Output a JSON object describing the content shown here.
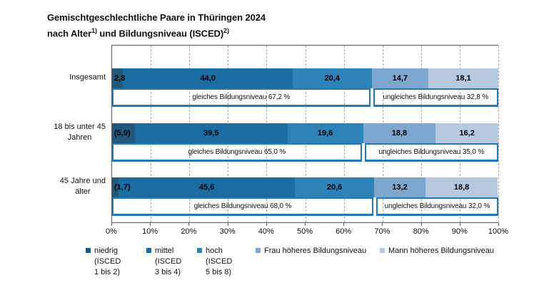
{
  "header": {
    "title_line1": "Gemischtgeschlechtliche Paare in Thüringen 2024",
    "title_line2_prefix": "nach Alter",
    "title_line2_sup1": "1)",
    "title_line2_mid": " und Bildungsniveau (ISCED)",
    "title_line2_sup2": "2)"
  },
  "palette": {
    "niedrig": "#20597c",
    "mittel": "#1b6ca3",
    "hoch": "#2d83b8",
    "frau_hoeher": "#7ea7cf",
    "mann_hoeher": "#b7c9df",
    "box_border": "#2279b5",
    "grid": "#a9a9a9",
    "axis": "#595959"
  },
  "chart_data": {
    "type": "bar",
    "orientation": "horizontal_stacked",
    "title": "Gemischtgeschlechtliche Paare in Thüringen 2024 nach Alter und Bildungsniveau (ISCED)",
    "grid": "dashed vertical at every 10%",
    "legend_position": "bottom",
    "xlim": [
      0,
      100
    ],
    "x_ticks": [
      "0%",
      "10%",
      "20%",
      "30%",
      "40%",
      "50%",
      "60%",
      "70%",
      "80%",
      "90%",
      "100%"
    ],
    "categories": [
      "Insgesamt",
      "18 bis unter 45 Jahren",
      "45 Jahre und älter"
    ],
    "category_display_lines": [
      [
        "Insgesamt"
      ],
      [
        "18 bis unter 45",
        "Jahren"
      ],
      [
        "45 Jahre und",
        "älter"
      ]
    ],
    "series": [
      {
        "name": "niedrig (ISCED 1 bis 2)",
        "color": "#20597c",
        "values": [
          2.8,
          5.9,
          1.7
        ],
        "display_labels": [
          "2,8",
          "(5,9)",
          "(1,7)"
        ]
      },
      {
        "name": "mittel (ISCED 3 bis 4)",
        "color": "#1b6ca3",
        "values": [
          44.0,
          39.5,
          45.6
        ],
        "display_labels": [
          "44,0",
          "39,5",
          "45,6"
        ]
      },
      {
        "name": "hoch (ISCED 5 bis 8)",
        "color": "#2d83b8",
        "values": [
          20.4,
          19.6,
          20.6
        ],
        "display_labels": [
          "20,4",
          "19,6",
          "20,6"
        ]
      },
      {
        "name": "Frau höheres Bildungsniveau",
        "color": "#7ea7cf",
        "values": [
          14.7,
          18.8,
          13.2
        ],
        "display_labels": [
          "14,7",
          "18,8",
          "13,2"
        ]
      },
      {
        "name": "Mann höheres Bildungsniveau",
        "color": "#b7c9df",
        "values": [
          18.1,
          16.2,
          18.8
        ],
        "display_labels": [
          "18,1",
          "16,2",
          "18,8"
        ]
      }
    ],
    "bracket_annotations": [
      {
        "equal_value": 67.2,
        "equal_label": "gleiches Bildungsniveau 67,2 %",
        "unequal_value": 32.8,
        "unequal_label": "ungleiches Bildungsniveau 32,8 %"
      },
      {
        "equal_value": 65.0,
        "equal_label": "gleiches Bildungsniveau 65,0 %",
        "unequal_value": 35.0,
        "unequal_label": "ungleiches Bildungsniveau 35,0 %"
      },
      {
        "equal_value": 68.0,
        "equal_label": "gleiches Bildungsniveau 68,0 %",
        "unequal_value": 32.0,
        "unequal_label": "ungleiches Bildungsniveau 32,0 %"
      }
    ]
  },
  "legend": {
    "items": [
      {
        "lines": [
          "niedrig",
          "(ISCED",
          "1 bis 2)"
        ],
        "color": "#20597c"
      },
      {
        "lines": [
          "mittel",
          "(ISCED",
          "3 bis 4)"
        ],
        "color": "#1b6ca3"
      },
      {
        "lines": [
          "hoch",
          "(ISCED",
          "5 bis 8)"
        ],
        "color": "#2d83b8"
      },
      {
        "lines": [
          "Frau höheres Bildungsniveau"
        ],
        "color": "#7ea7cf"
      },
      {
        "lines": [
          "Mann höheres Bildungsniveau"
        ],
        "color": "#b7c9df"
      }
    ]
  }
}
